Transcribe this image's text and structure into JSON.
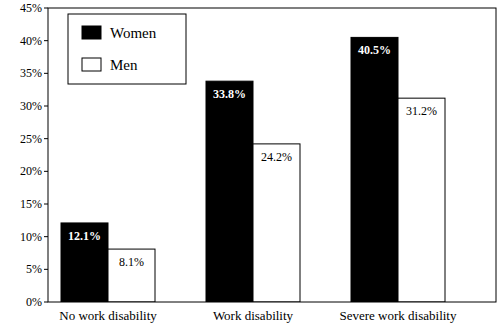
{
  "chart_data": {
    "type": "bar",
    "categories": [
      "No work disability",
      "Work disability",
      "Severe work disability"
    ],
    "series": [
      {
        "name": "Women",
        "color": "#000000",
        "values": [
          12.1,
          33.8,
          40.5
        ],
        "value_labels": [
          "12.1%",
          "33.8%",
          "40.5%"
        ]
      },
      {
        "name": "Men",
        "color": "#ffffff",
        "values": [
          8.1,
          24.2,
          31.2
        ],
        "value_labels": [
          "8.1%",
          "24.2%",
          "31.2%"
        ]
      }
    ],
    "ylim": [
      0,
      45
    ],
    "yticks": [
      {
        "value": 0,
        "label": "0%"
      },
      {
        "value": 5,
        "label": "5%"
      },
      {
        "value": 10,
        "label": "10%"
      },
      {
        "value": 15,
        "label": "15%"
      },
      {
        "value": 20,
        "label": "20%"
      },
      {
        "value": 25,
        "label": "25%"
      },
      {
        "value": 30,
        "label": "30%"
      },
      {
        "value": 35,
        "label": "35%"
      },
      {
        "value": 40,
        "label": "40%"
      },
      {
        "value": 45,
        "label": "45%"
      }
    ],
    "grid": false,
    "legend": "top-left",
    "data_labels": true
  }
}
